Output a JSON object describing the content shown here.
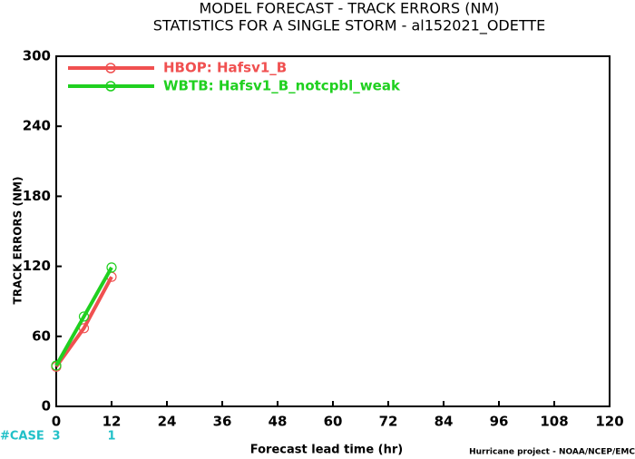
{
  "chart_data": {
    "type": "line",
    "title": "MODEL FORECAST - TRACK ERRORS (NM)",
    "subtitle": "STATISTICS FOR A SINGLE STORM - al152021_ODETTE",
    "x_label": "Forecast lead time (hr)",
    "y_label": "TRACK ERRORS (NM)",
    "footer": "Hurricane project - NOAA/NCEP/EMC",
    "x": [
      0,
      6,
      12
    ],
    "series": [
      {
        "name": "HBOP: Hafsv1_B",
        "color": "#f05050",
        "values": [
          34,
          67,
          111
        ]
      },
      {
        "name": "WBTB: Hafsv1_B_notcpbl_weak",
        "color": "#20d020",
        "values": [
          35,
          77,
          119
        ]
      }
    ],
    "cases": {
      "label": "#CASE",
      "color": "#20c0c8",
      "x": [
        0,
        12
      ],
      "values": [
        3,
        1
      ]
    },
    "xlim": [
      0,
      120
    ],
    "xticks": [
      0,
      12,
      24,
      36,
      48,
      60,
      72,
      84,
      96,
      108,
      120
    ],
    "ylim": [
      0,
      300
    ],
    "yticks": [
      0,
      60,
      120,
      180,
      240,
      300
    ],
    "legend": "top-left"
  }
}
